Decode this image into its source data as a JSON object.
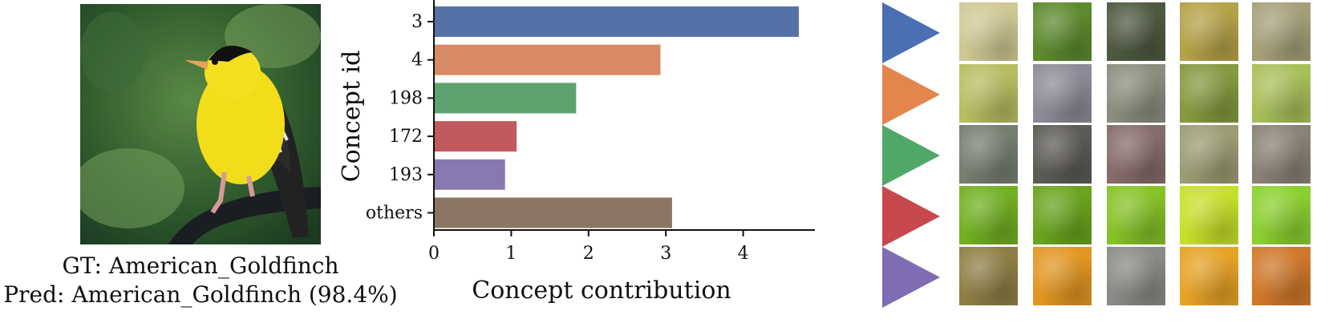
{
  "figure": {
    "gt_caption": "GT: American_Goldfinch",
    "pred_caption": "Pred: American_Goldfinch (98.4%)"
  },
  "chart_data": {
    "type": "bar",
    "orientation": "horizontal",
    "categories": [
      "3",
      "4",
      "198",
      "172",
      "193",
      "others"
    ],
    "values": [
      4.72,
      2.93,
      1.84,
      1.07,
      0.92,
      3.08
    ],
    "colors": [
      "#5572a6",
      "#d88a65",
      "#5ea26f",
      "#c05a5f",
      "#8779b0",
      "#8b7664"
    ],
    "xlabel": "Concept contribution",
    "ylabel": "Concept id",
    "xlim": [
      0,
      5
    ],
    "xticks": [
      0,
      1,
      2,
      3,
      4
    ],
    "grid": false
  },
  "concept_triangles": {
    "colors": [
      "#4a6fb2",
      "#e5854e",
      "#50a866",
      "#c8494d",
      "#7f6cb2"
    ]
  },
  "patch_rows": [
    [
      "#cfc894",
      "#5e8a2e",
      "#4e5a40",
      "#b4a248",
      "#a6a07a"
    ],
    [
      "#b8bd62",
      "#8c8c98",
      "#8b8e7e",
      "#859a40",
      "#a8c05a"
    ],
    [
      "#767e70",
      "#5d5b56",
      "#866c6a",
      "#9c9c74",
      "#8a8276"
    ],
    [
      "#72b022",
      "#6aa41e",
      "#86c226",
      "#c6e02a",
      "#8cd030"
    ],
    [
      "#8f7f45",
      "#e29622",
      "#8a8a86",
      "#e6a226",
      "#d0782a"
    ]
  ]
}
